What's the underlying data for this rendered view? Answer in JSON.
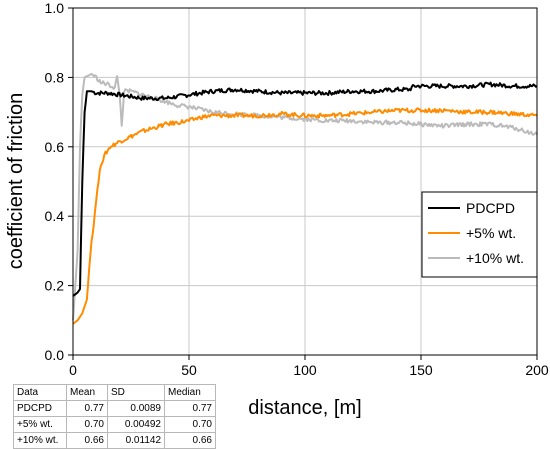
{
  "chart_data": {
    "type": "line",
    "xlabel": "distance, [m]",
    "ylabel": "coefficient of friction",
    "xlim": [
      0,
      200
    ],
    "ylim": [
      0,
      1.0
    ],
    "x_ticks": [
      "0",
      "50",
      "100",
      "150",
      "200"
    ],
    "y_ticks": [
      "0.0",
      "0.2",
      "0.4",
      "0.6",
      "0.8",
      "1.0"
    ],
    "grid": true,
    "legend_position": "right",
    "series": [
      {
        "name": "PDCPD",
        "color": "#000000",
        "points": [
          [
            0,
            0.17
          ],
          [
            2,
            0.18
          ],
          [
            3,
            0.19
          ],
          [
            4,
            0.5
          ],
          [
            5,
            0.7
          ],
          [
            6,
            0.76
          ],
          [
            8,
            0.76
          ],
          [
            10,
            0.755
          ],
          [
            15,
            0.755
          ],
          [
            20,
            0.75
          ],
          [
            25,
            0.745
          ],
          [
            30,
            0.74
          ],
          [
            35,
            0.74
          ],
          [
            40,
            0.74
          ],
          [
            45,
            0.745
          ],
          [
            50,
            0.75
          ],
          [
            60,
            0.76
          ],
          [
            70,
            0.765
          ],
          [
            80,
            0.76
          ],
          [
            90,
            0.755
          ],
          [
            100,
            0.755
          ],
          [
            110,
            0.755
          ],
          [
            120,
            0.76
          ],
          [
            130,
            0.76
          ],
          [
            140,
            0.765
          ],
          [
            145,
            0.765
          ],
          [
            147,
            0.775
          ],
          [
            150,
            0.775
          ],
          [
            160,
            0.775
          ],
          [
            170,
            0.775
          ],
          [
            180,
            0.78
          ],
          [
            190,
            0.775
          ],
          [
            200,
            0.775
          ]
        ]
      },
      {
        "name": "+5% wt.",
        "color": "#ff8c00",
        "points": [
          [
            0,
            0.09
          ],
          [
            2,
            0.1
          ],
          [
            4,
            0.12
          ],
          [
            6,
            0.16
          ],
          [
            7,
            0.25
          ],
          [
            8,
            0.33
          ],
          [
            9,
            0.38
          ],
          [
            10,
            0.45
          ],
          [
            11,
            0.5
          ],
          [
            12,
            0.55
          ],
          [
            14,
            0.58
          ],
          [
            16,
            0.6
          ],
          [
            20,
            0.615
          ],
          [
            25,
            0.63
          ],
          [
            30,
            0.645
          ],
          [
            35,
            0.655
          ],
          [
            40,
            0.665
          ],
          [
            45,
            0.67
          ],
          [
            50,
            0.675
          ],
          [
            55,
            0.685
          ],
          [
            60,
            0.69
          ],
          [
            70,
            0.69
          ],
          [
            80,
            0.69
          ],
          [
            90,
            0.695
          ],
          [
            100,
            0.69
          ],
          [
            110,
            0.69
          ],
          [
            120,
            0.695
          ],
          [
            130,
            0.7
          ],
          [
            140,
            0.705
          ],
          [
            150,
            0.705
          ],
          [
            160,
            0.705
          ],
          [
            170,
            0.7
          ],
          [
            180,
            0.7
          ],
          [
            190,
            0.695
          ],
          [
            200,
            0.69
          ]
        ]
      },
      {
        "name": "+10% wt.",
        "color": "#bbbbbb",
        "points": [
          [
            0,
            0.1
          ],
          [
            2,
            0.3
          ],
          [
            3,
            0.6
          ],
          [
            4,
            0.75
          ],
          [
            5,
            0.8
          ],
          [
            8,
            0.81
          ],
          [
            10,
            0.8
          ],
          [
            12,
            0.785
          ],
          [
            15,
            0.78
          ],
          [
            18,
            0.77
          ],
          [
            19,
            0.8
          ],
          [
            20,
            0.76
          ],
          [
            21,
            0.66
          ],
          [
            22,
            0.76
          ],
          [
            25,
            0.76
          ],
          [
            30,
            0.75
          ],
          [
            35,
            0.74
          ],
          [
            40,
            0.73
          ],
          [
            45,
            0.72
          ],
          [
            50,
            0.715
          ],
          [
            60,
            0.7
          ],
          [
            70,
            0.695
          ],
          [
            80,
            0.69
          ],
          [
            90,
            0.685
          ],
          [
            100,
            0.68
          ],
          [
            110,
            0.675
          ],
          [
            120,
            0.675
          ],
          [
            130,
            0.67
          ],
          [
            140,
            0.67
          ],
          [
            150,
            0.665
          ],
          [
            160,
            0.66
          ],
          [
            170,
            0.665
          ],
          [
            180,
            0.665
          ],
          [
            190,
            0.655
          ],
          [
            200,
            0.635
          ]
        ]
      }
    ]
  },
  "stats_table": {
    "headers": [
      "Data",
      "Mean",
      "SD",
      "Median"
    ],
    "rows": [
      [
        "PDCPD",
        "0.77",
        "0.0089",
        "0.77"
      ],
      [
        "+5% wt.",
        "0.70",
        "0.00492",
        "0.70"
      ],
      [
        "+10% wt.",
        "0.66",
        "0.01142",
        "0.66"
      ]
    ]
  }
}
